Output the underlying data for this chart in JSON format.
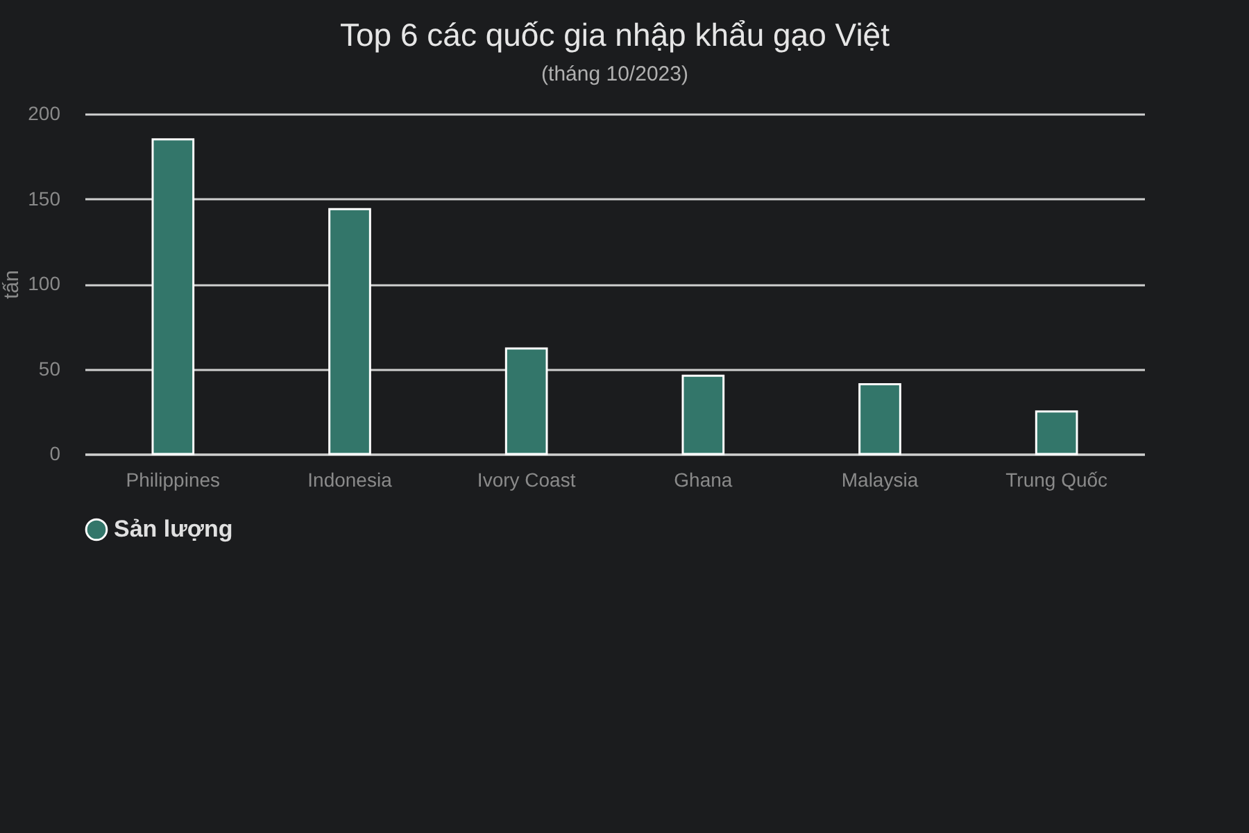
{
  "chart_data": {
    "type": "bar",
    "title": "Top 6 các quốc gia nhập khẩu gạo Việt",
    "subtitle": "(tháng 10/2023)",
    "ylabel": "tấn",
    "categories": [
      "Philippines",
      "Indonesia",
      "Ivory Coast",
      "Ghana",
      "Malaysia",
      "Trung Quốc"
    ],
    "series": [
      {
        "name": "Sản lượng",
        "color": "#33766a",
        "values": [
          185,
          144,
          62,
          46,
          41,
          25
        ]
      }
    ],
    "ylim": [
      0,
      200
    ],
    "yticks": [
      0,
      50,
      100,
      150,
      200
    ],
    "grid": "y",
    "legend": "bottom"
  }
}
